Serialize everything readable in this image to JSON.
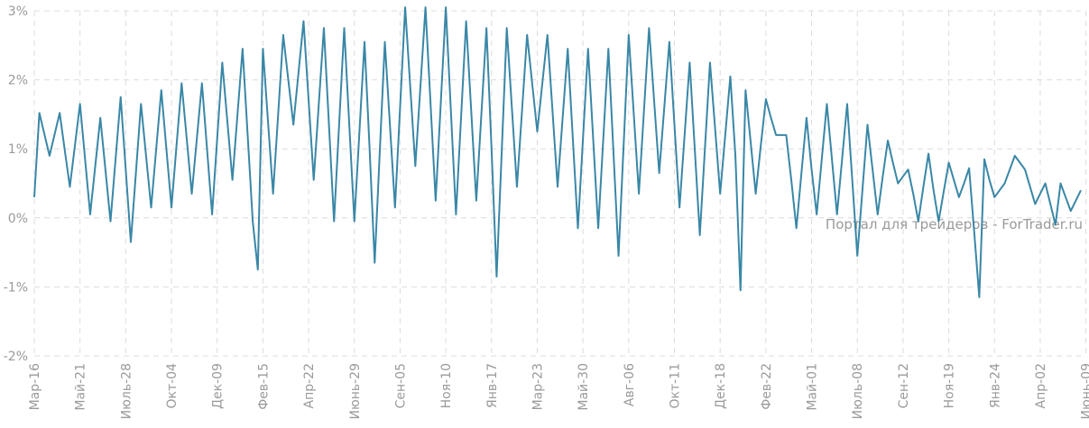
{
  "watermark": "Портал для трейдеров - ForTrader.ru",
  "colors": {
    "line": "#3a87a6",
    "grid": "#dcdcdc",
    "text": "#9a9a9a"
  },
  "chart_data": {
    "type": "line",
    "title": "",
    "xlabel": "",
    "ylabel": "",
    "ylim": [
      -2,
      3
    ],
    "y_ticks": [
      -2,
      -1,
      0,
      1,
      2,
      3
    ],
    "y_tick_labels": [
      "-2%",
      "-1%",
      "0%",
      "1%",
      "2%",
      "3%"
    ],
    "x_tick_labels": [
      "Мар-16",
      "Май-21",
      "Июль-28",
      "Окт-04",
      "Дек-09",
      "Фев-15",
      "Апр-22",
      "Июнь-29",
      "Сен-05",
      "Ноя-10",
      "Янв-17",
      "Мар-23",
      "Май-30",
      "Авг-06",
      "Окт-11",
      "Дек-18",
      "Фев-22",
      "Май-01",
      "Июль-08",
      "Сен-12",
      "Ноя-19",
      "Янв-24",
      "Апр-02",
      "Июнь-09"
    ],
    "x_tick_index": [
      0,
      9,
      18,
      27,
      36,
      45,
      54,
      63,
      72,
      81,
      90,
      99,
      108,
      117,
      126,
      135,
      144,
      153,
      162,
      171,
      180,
      189,
      198,
      207
    ],
    "grid": true,
    "series": [
      {
        "values": [
          0.3,
          1.52,
          1.21,
          0.9,
          1.21,
          1.52,
          0.98,
          0.45,
          1.05,
          1.65,
          0.85,
          0.05,
          0.75,
          1.45,
          0.7,
          -0.05,
          0.85,
          1.75,
          0.7,
          -0.35,
          0.65,
          1.65,
          0.9,
          0.15,
          1.0,
          1.85,
          1.0,
          0.15,
          1.05,
          1.95,
          1.15,
          0.35,
          1.15,
          1.95,
          1.0,
          0.05,
          1.15,
          2.25,
          1.4,
          0.55,
          1.5,
          2.45,
          1.2,
          -0.05,
          -0.75,
          2.45,
          1.4,
          0.35,
          1.5,
          2.65,
          2.0,
          1.35,
          2.1,
          2.85,
          1.7,
          0.55,
          1.65,
          2.75,
          1.35,
          -0.05,
          1.35,
          2.75,
          1.35,
          -0.05,
          1.25,
          2.55,
          1.0,
          -0.65,
          0.95,
          2.55,
          1.35,
          0.15,
          1.6,
          3.05,
          1.9,
          0.75,
          1.9,
          3.05,
          1.65,
          0.25,
          1.65,
          3.05,
          1.55,
          0.05,
          1.45,
          2.85,
          1.55,
          0.25,
          1.5,
          2.75,
          1.0,
          -0.85,
          0.95,
          2.75,
          1.6,
          0.45,
          1.55,
          2.65,
          1.95,
          1.25,
          1.95,
          2.65,
          1.55,
          0.45,
          1.45,
          2.45,
          1.15,
          -0.15,
          1.15,
          2.45,
          1.15,
          -0.15,
          1.15,
          2.45,
          0.95,
          -0.55,
          1.05,
          2.65,
          1.5,
          0.35,
          1.55,
          2.75,
          1.7,
          0.65,
          1.6,
          2.55,
          1.35,
          0.15,
          1.2,
          2.25,
          1.0,
          -0.25,
          1.0,
          2.25,
          1.3,
          0.35,
          1.2,
          2.05,
          0.9,
          -1.05,
          1.85,
          1.1,
          0.35,
          1.05,
          1.72,
          1.45,
          1.2,
          1.2,
          1.2,
          0.55,
          -0.15,
          0.65,
          1.45,
          0.7,
          0.05,
          0.85,
          1.65,
          0.85,
          0.05,
          0.85,
          1.65,
          0.55,
          -0.55,
          0.4,
          1.35,
          0.7,
          0.05,
          0.6,
          1.12,
          0.8,
          0.5,
          0.6,
          0.7,
          0.35,
          -0.05,
          0.45,
          0.93,
          0.4,
          -0.05,
          0.38,
          0.8,
          0.55,
          0.3,
          0.5,
          0.72,
          -0.2,
          -1.15,
          0.85,
          0.55,
          0.3,
          0.4,
          0.5,
          0.7,
          0.9,
          0.8,
          0.7,
          0.45,
          0.2,
          0.35,
          0.5,
          0.2,
          -0.1,
          0.5,
          0.3,
          0.1,
          0.25,
          0.4
        ]
      }
    ]
  }
}
